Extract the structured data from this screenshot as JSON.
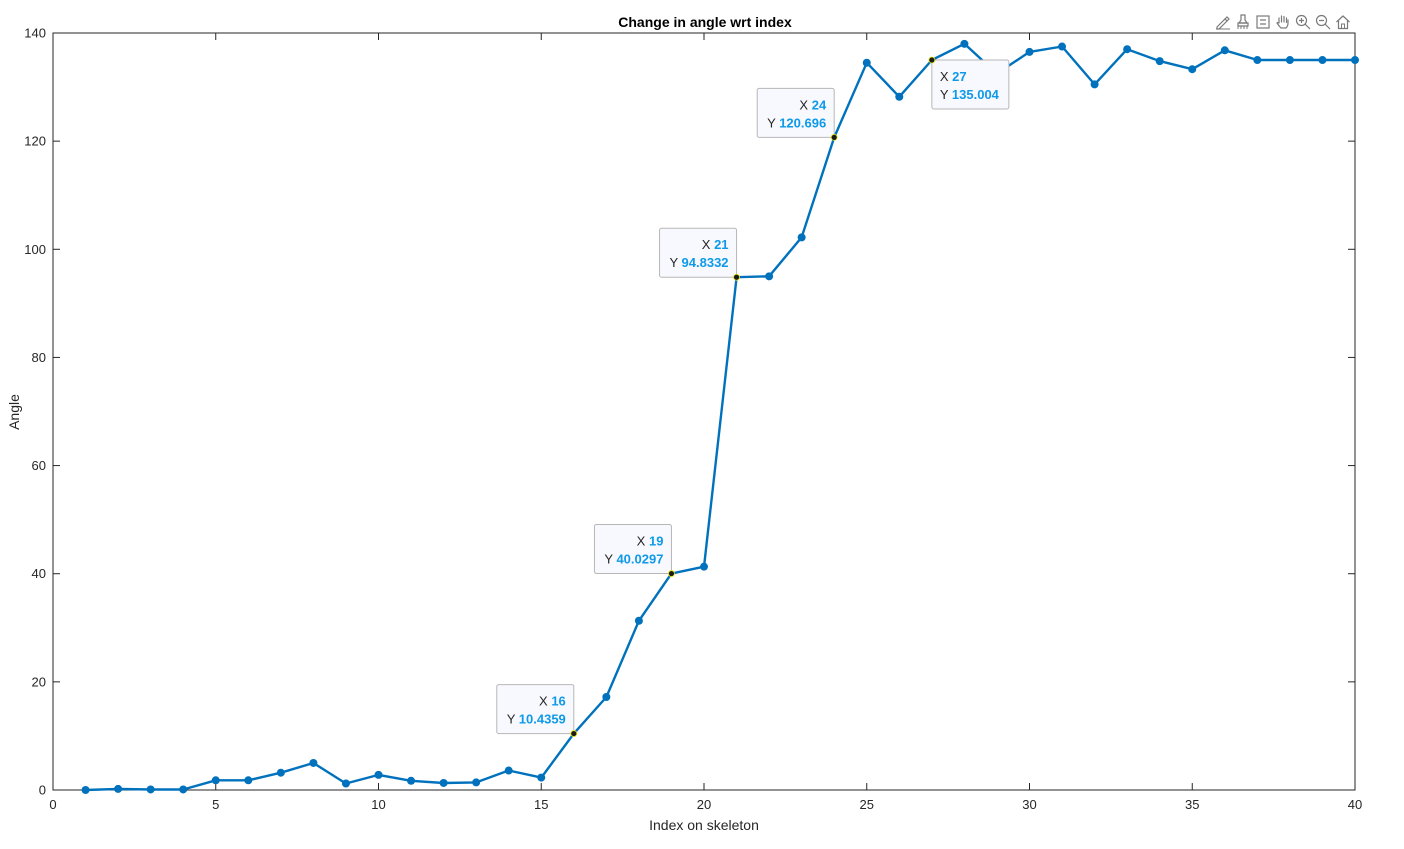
{
  "chart_data": {
    "type": "line",
    "title": "Change in angle wrt index",
    "xlabel": "Index on skeleton",
    "ylabel": "Angle",
    "xlim": [
      0,
      40
    ],
    "ylim": [
      0,
      140
    ],
    "xticks": [
      0,
      5,
      10,
      15,
      20,
      25,
      30,
      35,
      40
    ],
    "yticks": [
      0,
      20,
      40,
      60,
      80,
      100,
      120,
      140
    ],
    "grid": false,
    "line_color": "#0072BD",
    "series": [
      {
        "x": [
          1,
          2,
          3,
          4,
          5,
          6,
          7,
          8,
          9,
          10,
          11,
          12,
          13,
          14,
          15,
          16,
          17,
          18,
          19,
          20,
          21,
          22,
          23,
          24,
          25,
          26,
          27,
          28,
          29,
          30,
          31,
          32,
          33,
          34,
          35,
          36,
          37,
          38,
          39,
          40
        ],
        "values": [
          0,
          0.2,
          0.1,
          0.1,
          1.8,
          1.8,
          3.2,
          5.0,
          1.2,
          2.8,
          1.7,
          1.3,
          1.4,
          3.6,
          2.3,
          10.4359,
          17.2,
          31.3,
          40.0297,
          41.3,
          94.8332,
          95.0,
          102.2,
          120.696,
          134.5,
          128.2,
          135.004,
          138.0,
          132.5,
          136.5,
          137.5,
          130.5,
          137.0,
          134.8,
          133.3,
          136.8,
          135.0,
          135.0,
          135.0,
          135.0
        ]
      }
    ],
    "datatips": [
      {
        "x": 16,
        "y": 10.4359,
        "x_text": "16",
        "y_text": "10.4359",
        "x_label": "X",
        "y_label": "Y"
      },
      {
        "x": 19,
        "y": 40.0297,
        "x_text": "19",
        "y_text": "40.0297",
        "x_label": "X",
        "y_label": "Y"
      },
      {
        "x": 21,
        "y": 94.8332,
        "x_text": "21",
        "y_text": "94.8332",
        "x_label": "X",
        "y_label": "Y"
      },
      {
        "x": 24,
        "y": 120.696,
        "x_text": "24",
        "y_text": "120.696",
        "x_label": "X",
        "y_label": "Y"
      },
      {
        "x": 27,
        "y": 135.004,
        "x_text": "27",
        "y_text": "135.004",
        "x_label": "X",
        "y_label": "Y"
      }
    ]
  },
  "toolbar": {
    "icons": [
      "brush-edit-icon",
      "data-cursor-icon",
      "restore-view-icon",
      "pan-hand-icon",
      "zoom-in-icon",
      "zoom-out-icon",
      "home-icon"
    ]
  }
}
